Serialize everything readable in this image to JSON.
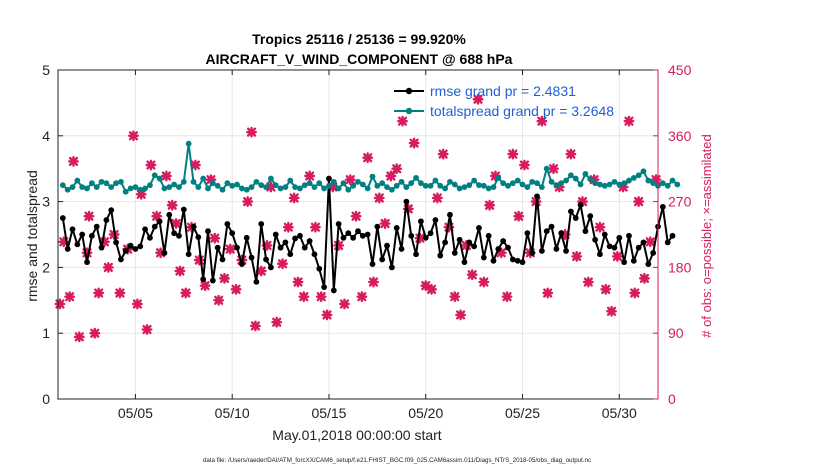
{
  "chart_data": {
    "type": "line",
    "title_line1": "Tropics 25116 / 25136 = 99.920%",
    "title_line2": "AIRCRAFT_V_WIND_COMPONENT @ 688 hPa",
    "xlabel": "May.01,2018 00:00:00 start",
    "ylabel_left": "rmse and totalspread",
    "ylabel_right": "# of obs: o=possible; ×=assimilated",
    "footer": "data file: /Users/raeder/DAI/ATM_forcXX/CAM6_setup/f.e21.FHIST_BGC.f09_025.CAM6assim.011/Diags_NTrS_2018-05/obs_diag_output.nc",
    "xlim": [
      1,
      32
    ],
    "ylim_left": [
      0,
      5
    ],
    "ylim_right": [
      0,
      450
    ],
    "x_ticks": [
      5,
      10,
      15,
      20,
      25,
      30
    ],
    "x_tick_labels": [
      "05/05",
      "05/10",
      "05/15",
      "05/20",
      "05/25",
      "05/30"
    ],
    "y_ticks_left": [
      0,
      1,
      2,
      3,
      4,
      5
    ],
    "y_tick_labels_left": [
      "0",
      "1",
      "2",
      "3",
      "4",
      "5"
    ],
    "y_ticks_right": [
      0,
      90,
      180,
      270,
      360,
      450
    ],
    "y_tick_labels_right": [
      "0",
      "90",
      "180",
      "270",
      "360",
      "450"
    ],
    "legend_location": "top-right",
    "colors": {
      "rmse": "#000000",
      "spread": "#008080",
      "obs": "#d81b60",
      "grid": "#e6e6e6"
    },
    "series": [
      {
        "name": "rmse grand pr = 2.4831",
        "key": "rmse",
        "x_start": 1.25,
        "x_step": 0.25,
        "values": [
          2.75,
          2.28,
          2.58,
          2.35,
          2.5,
          2.08,
          2.48,
          2.62,
          2.3,
          2.72,
          2.87,
          2.38,
          2.12,
          2.25,
          2.33,
          2.28,
          2.32,
          2.58,
          2.45,
          2.62,
          2.7,
          2.22,
          2.8,
          2.52,
          2.48,
          2.88,
          2.2,
          2.62,
          2.46,
          1.82,
          2.55,
          1.8,
          2.3,
          2.12,
          2.66,
          2.52,
          2.3,
          2.05,
          2.45,
          2.15,
          1.78,
          2.66,
          2.12,
          2.0,
          2.5,
          2.3,
          2.38,
          2.2,
          2.44,
          2.48,
          2.3,
          2.4,
          2.2,
          1.98,
          1.7,
          3.35,
          1.65,
          2.66,
          2.45,
          2.52,
          2.45,
          2.55,
          2.48,
          2.5,
          2.05,
          2.62,
          2.12,
          2.33,
          2.0,
          2.6,
          2.28,
          3.0,
          2.48,
          2.2,
          2.7,
          2.45,
          2.52,
          2.72,
          2.18,
          2.38,
          2.8,
          2.22,
          2.42,
          2.08,
          2.38,
          2.32,
          2.6,
          2.15,
          2.48,
          2.1,
          2.28,
          2.4,
          2.3,
          2.12,
          2.1,
          2.08,
          2.52,
          2.22,
          3.08,
          2.25,
          2.55,
          2.62,
          2.28,
          2.52,
          2.25,
          2.85,
          2.75,
          2.95,
          2.55,
          2.78,
          2.42,
          2.2,
          2.5,
          2.32,
          2.3,
          2.45,
          2.08,
          2.48,
          2.1,
          2.3,
          2.38,
          2.05,
          2.22,
          2.62,
          2.92,
          2.38,
          2.48
        ]
      },
      {
        "name": "totalspread grand pr = 3.2648",
        "key": "spread",
        "x_start": 1.25,
        "x_step": 0.25,
        "values": [
          3.25,
          3.18,
          3.22,
          3.32,
          3.22,
          3.2,
          3.28,
          3.22,
          3.3,
          3.28,
          3.22,
          3.28,
          3.3,
          3.15,
          3.2,
          3.22,
          3.18,
          3.2,
          3.25,
          3.4,
          3.35,
          3.2,
          3.22,
          3.26,
          3.22,
          3.3,
          3.88,
          3.3,
          3.22,
          3.35,
          3.2,
          3.28,
          3.24,
          3.18,
          3.28,
          3.24,
          3.26,
          3.2,
          3.18,
          3.22,
          3.3,
          3.25,
          3.22,
          3.35,
          3.25,
          3.2,
          3.22,
          3.32,
          3.22,
          3.2,
          3.25,
          3.28,
          3.22,
          3.28,
          3.2,
          3.24,
          3.3,
          3.2,
          3.28,
          3.18,
          3.24,
          3.3,
          3.26,
          3.2,
          3.38,
          3.24,
          3.28,
          3.22,
          3.18,
          3.24,
          3.3,
          3.22,
          3.28,
          3.36,
          3.28,
          3.24,
          3.24,
          3.32,
          3.24,
          3.2,
          3.3,
          3.26,
          3.2,
          3.22,
          3.25,
          3.32,
          3.25,
          3.24,
          3.2,
          3.22,
          3.36,
          3.28,
          3.24,
          3.28,
          3.32,
          3.26,
          3.22,
          3.3,
          3.28,
          3.22,
          3.5,
          3.3,
          3.25,
          3.28,
          3.32,
          3.4,
          3.35,
          3.26,
          3.42,
          3.34,
          3.28,
          3.26,
          3.24,
          3.26,
          3.3,
          3.26,
          3.28,
          3.32,
          3.36,
          3.4,
          3.46,
          3.32,
          3.28,
          3.24,
          3.28,
          3.24,
          3.32,
          3.26
        ]
      }
    ],
    "obs_markers": {
      "name": "# of obs",
      "points": [
        [
          1.1,
          130
        ],
        [
          1.3,
          215
        ],
        [
          1.6,
          140
        ],
        [
          1.8,
          325
        ],
        [
          2.1,
          85
        ],
        [
          2.5,
          200
        ],
        [
          2.6,
          250
        ],
        [
          2.9,
          90
        ],
        [
          3.1,
          145
        ],
        [
          3.4,
          215
        ],
        [
          3.6,
          180
        ],
        [
          3.9,
          225
        ],
        [
          4.2,
          145
        ],
        [
          4.6,
          205
        ],
        [
          4.9,
          360
        ],
        [
          5.1,
          130
        ],
        [
          5.3,
          280
        ],
        [
          5.6,
          95
        ],
        [
          5.8,
          320
        ],
        [
          6.1,
          250
        ],
        [
          6.3,
          200
        ],
        [
          6.6,
          305
        ],
        [
          6.9,
          265
        ],
        [
          7.1,
          240
        ],
        [
          7.3,
          175
        ],
        [
          7.6,
          145
        ],
        [
          7.9,
          235
        ],
        [
          8.1,
          320
        ],
        [
          8.3,
          190
        ],
        [
          8.6,
          155
        ],
        [
          8.9,
          300
        ],
        [
          9.1,
          220
        ],
        [
          9.3,
          135
        ],
        [
          9.6,
          165
        ],
        [
          9.9,
          205
        ],
        [
          10.2,
          150
        ],
        [
          10.5,
          190
        ],
        [
          10.8,
          270
        ],
        [
          11.0,
          365
        ],
        [
          11.2,
          100
        ],
        [
          11.5,
          175
        ],
        [
          11.8,
          210
        ],
        [
          12.0,
          290
        ],
        [
          12.3,
          105
        ],
        [
          12.6,
          185
        ],
        [
          12.9,
          235
        ],
        [
          13.2,
          275
        ],
        [
          13.4,
          160
        ],
        [
          13.7,
          140
        ],
        [
          14.0,
          305
        ],
        [
          14.3,
          235
        ],
        [
          14.6,
          140
        ],
        [
          14.9,
          115
        ],
        [
          15.2,
          290
        ],
        [
          15.5,
          210
        ],
        [
          15.8,
          130
        ],
        [
          16.1,
          300
        ],
        [
          16.4,
          250
        ],
        [
          16.7,
          140
        ],
        [
          17.0,
          330
        ],
        [
          17.3,
          160
        ],
        [
          17.6,
          275
        ],
        [
          17.9,
          240
        ],
        [
          18.2,
          305
        ],
        [
          18.5,
          315
        ],
        [
          18.8,
          380
        ],
        [
          19.1,
          260
        ],
        [
          19.4,
          350
        ],
        [
          19.7,
          220
        ],
        [
          20.0,
          155
        ],
        [
          20.3,
          150
        ],
        [
          20.6,
          275
        ],
        [
          20.9,
          335
        ],
        [
          21.2,
          235
        ],
        [
          21.5,
          140
        ],
        [
          21.8,
          115
        ],
        [
          22.1,
          210
        ],
        [
          22.4,
          170
        ],
        [
          22.7,
          410
        ],
        [
          23.0,
          160
        ],
        [
          23.3,
          265
        ],
        [
          23.6,
          305
        ],
        [
          23.9,
          200
        ],
        [
          24.2,
          140
        ],
        [
          24.5,
          335
        ],
        [
          24.8,
          250
        ],
        [
          25.1,
          320
        ],
        [
          25.4,
          200
        ],
        [
          25.7,
          270
        ],
        [
          26.0,
          380
        ],
        [
          26.3,
          145
        ],
        [
          26.6,
          315
        ],
        [
          26.9,
          290
        ],
        [
          27.2,
          225
        ],
        [
          27.5,
          335
        ],
        [
          27.8,
          195
        ],
        [
          28.1,
          270
        ],
        [
          28.4,
          160
        ],
        [
          28.7,
          300
        ],
        [
          29.0,
          235
        ],
        [
          29.3,
          150
        ],
        [
          29.6,
          120
        ],
        [
          29.9,
          195
        ],
        [
          30.2,
          290
        ],
        [
          30.5,
          380
        ],
        [
          30.8,
          145
        ],
        [
          31.0,
          270
        ],
        [
          31.3,
          165
        ],
        [
          31.6,
          215
        ],
        [
          31.9,
          300
        ]
      ]
    }
  }
}
